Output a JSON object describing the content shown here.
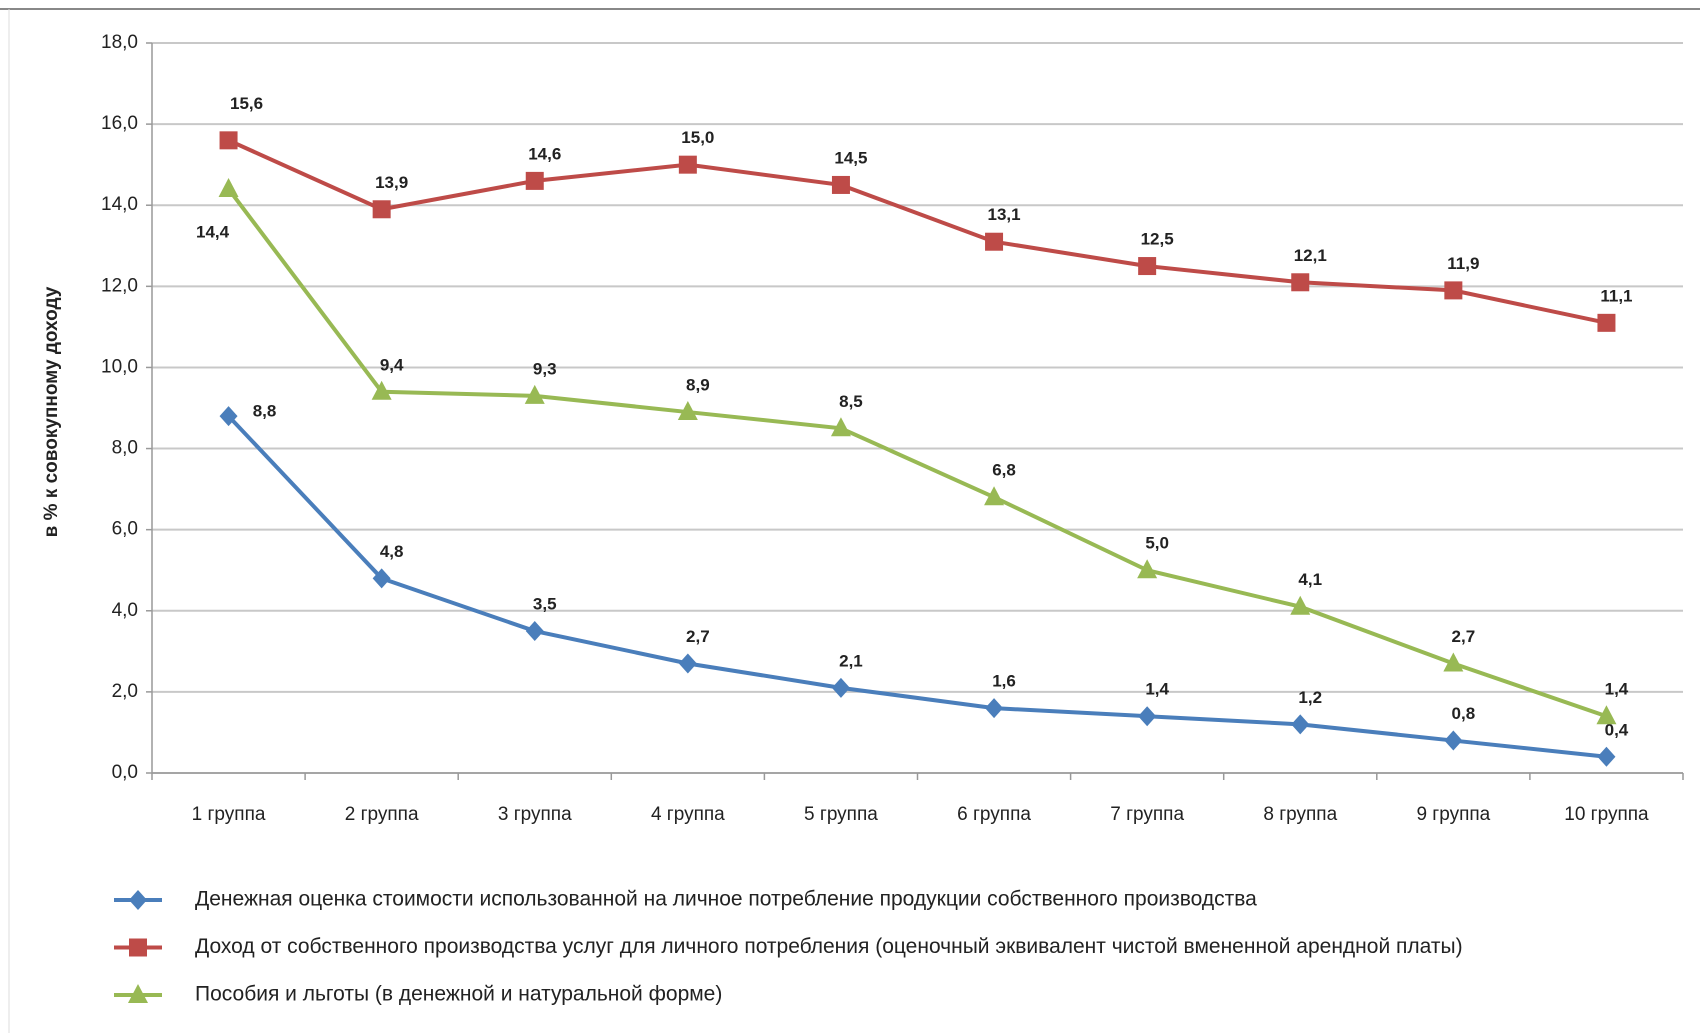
{
  "chart_data": {
    "type": "line",
    "y_label": "в % к совокупному доходу",
    "categories": [
      "1 группа",
      "2 группа",
      "3 группа",
      "4 группа",
      "5 группа",
      "6 группа",
      "7 группа",
      "8 группа",
      "9 группа",
      "10 группа"
    ],
    "series": [
      {
        "name": "Денежная оценка стоимости использованной на личное потребление продукции собственного производства",
        "color": "#4a7ebb",
        "marker": "diamond",
        "values": [
          8.8,
          4.8,
          3.5,
          2.7,
          2.1,
          1.6,
          1.4,
          1.2,
          0.8,
          0.4
        ],
        "value_labels": [
          "8,8",
          "4,8",
          "3,5",
          "2,7",
          "2,1",
          "1,6",
          "1,4",
          "1,2",
          "0,8",
          "0,4"
        ]
      },
      {
        "name": "Доход от собственного производства услуг для личного потребления (оценочный эквивалент чистой вмененной арендной платы)",
        "color": "#be4b48",
        "marker": "square",
        "values": [
          15.6,
          13.9,
          14.6,
          15.0,
          14.5,
          13.1,
          12.5,
          12.1,
          11.9,
          11.1
        ],
        "value_labels": [
          "15,6",
          "13,9",
          "14,6",
          "15,0",
          "14,5",
          "13,1",
          "12,5",
          "12,1",
          "11,9",
          "11,1"
        ]
      },
      {
        "name": "Пособия и льготы (в денежной и натуральной форме)",
        "color": "#98b954",
        "marker": "triangle",
        "values": [
          14.4,
          9.4,
          9.3,
          8.9,
          8.5,
          6.8,
          5.0,
          4.1,
          2.7,
          1.4
        ],
        "value_labels": [
          "14,4",
          "9,4",
          "9,3",
          "8,9",
          "8,5",
          "6,8",
          "5,0",
          "4,1",
          "2,7",
          "1,4"
        ]
      }
    ],
    "ylim": [
      0,
      18
    ],
    "yticks": [
      {
        "value": 0,
        "label": "0,0"
      },
      {
        "value": 2,
        "label": "2,0"
      },
      {
        "value": 4,
        "label": "4,0"
      },
      {
        "value": 6,
        "label": "6,0"
      },
      {
        "value": 8,
        "label": "8,0"
      },
      {
        "value": 10,
        "label": "10,0"
      },
      {
        "value": 12,
        "label": "12,0"
      },
      {
        "value": 14,
        "label": "14,0"
      },
      {
        "value": 16,
        "label": "16,0"
      },
      {
        "value": 18,
        "label": "18,0"
      }
    ],
    "grid": true,
    "legend": "bottom"
  }
}
